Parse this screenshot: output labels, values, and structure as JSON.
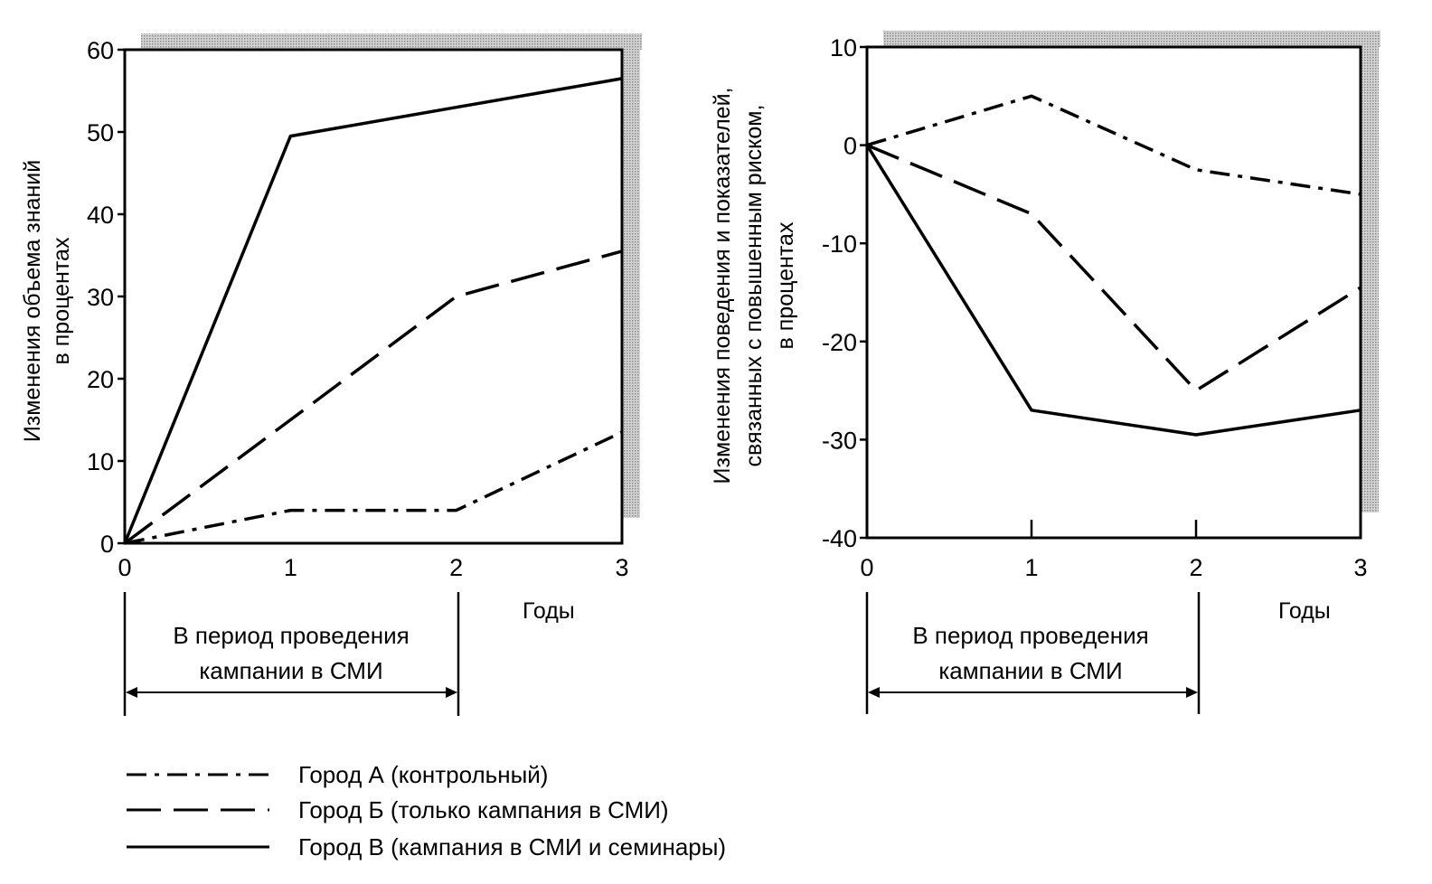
{
  "chart_data": [
    {
      "type": "line",
      "x": [
        0,
        1,
        2,
        3
      ],
      "xlabel": "Годы",
      "ylabel": [
        "Изменения объема знаний",
        "в процентах"
      ],
      "xlim": [
        0,
        3
      ],
      "ylim": [
        0,
        60
      ],
      "xticks": [
        "0",
        "1",
        "2",
        "3"
      ],
      "yticks": [
        "0",
        "10",
        "20",
        "30",
        "40",
        "50",
        "60"
      ],
      "grid": false,
      "series": [
        {
          "name": "Город А (контрольный)",
          "style": "dash-dot",
          "values": [
            0,
            4,
            4,
            13.5
          ]
        },
        {
          "name": "Город Б (только кампания в СМИ)",
          "style": "dashed",
          "values": [
            0,
            15,
            30,
            35.5
          ]
        },
        {
          "name": "Город В (кампания в СМИ и семинары)",
          "style": "solid",
          "values": [
            0,
            49.5,
            53,
            56.5
          ]
        }
      ],
      "annotation": {
        "lines": [
          "В период проведения",
          "кампании в СМИ"
        ],
        "from": 0,
        "to": 2
      }
    },
    {
      "type": "line",
      "x": [
        0,
        1,
        2,
        3
      ],
      "xlabel": "Годы",
      "ylabel": [
        "Изменения поведения и показателей,",
        "связанных с повышенным риском,",
        "в процентах"
      ],
      "xlim": [
        0,
        3
      ],
      "ylim": [
        -40,
        10
      ],
      "xticks": [
        "0",
        "1",
        "2",
        "3"
      ],
      "yticks": [
        "10",
        "0",
        "-10",
        "-20",
        "-30",
        "-40"
      ],
      "grid": false,
      "series": [
        {
          "name": "Город А (контрольный)",
          "style": "dash-dot",
          "values": [
            0,
            5,
            -2.5,
            -5
          ]
        },
        {
          "name": "Город Б (только кампания в СМИ)",
          "style": "dashed",
          "values": [
            0,
            -7,
            -25,
            -14.5
          ]
        },
        {
          "name": "Город В (кампания в СМИ и семинары)",
          "style": "solid",
          "values": [
            0,
            -27,
            -29.5,
            -27
          ]
        }
      ],
      "annotation": {
        "lines": [
          "В период проведения",
          "кампании в СМИ"
        ],
        "from": 0,
        "to": 2
      }
    }
  ],
  "legend": [
    {
      "label": "Город А (контрольный)",
      "style": "dash-dot"
    },
    {
      "label": "Город Б (только кампания в СМИ)",
      "style": "dashed"
    },
    {
      "label": "Город В (кампания в СМИ и семинары)",
      "style": "solid"
    }
  ],
  "colors": {
    "line": "#000000",
    "shadow": "#b5b5b5",
    "background": "#ffffff"
  }
}
